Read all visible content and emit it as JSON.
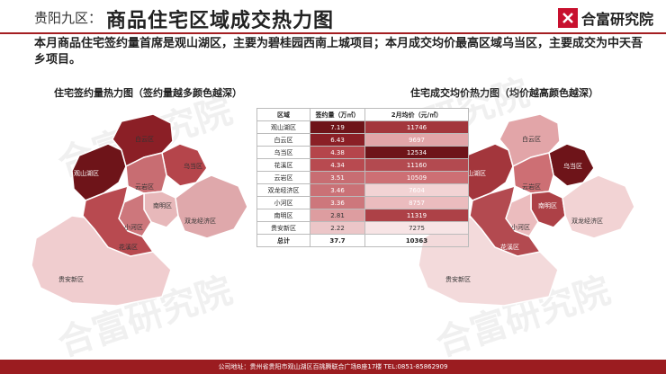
{
  "title_prefix": "贵阳九区：",
  "title_main": "商品住宅区域成交热力图",
  "brand_name": "合富研究院",
  "summary": "本月商品住宅签约量首席是观山湖区，主要为碧桂园西南上城项目；本月成交均价最高区域乌当区，主要成交为中天吾乡项目。",
  "left_subtitle": "住宅签约量热力图（签约量越多颜色越深）",
  "right_subtitle": "住宅成交均价热力图（均价越高颜色越深）",
  "watermark": "合富研究院",
  "table": {
    "headers": [
      "区域",
      "签约量（万㎡）",
      "2月均价（元/㎡）"
    ],
    "rows": [
      {
        "name": "观山湖区",
        "vol": "7.19",
        "price": "11746",
        "vc": "#6e1419",
        "pc": "#a3363c"
      },
      {
        "name": "白云区",
        "vol": "6.43",
        "price": "9697",
        "vc": "#8b1f26",
        "pc": "#e2a5a8"
      },
      {
        "name": "乌当区",
        "vol": "4.38",
        "price": "12534",
        "vc": "#b5454b",
        "pc": "#6e1419"
      },
      {
        "name": "花溪区",
        "vol": "4.34",
        "price": "11160",
        "vc": "#b84a50",
        "pc": "#b34a50"
      },
      {
        "name": "云岩区",
        "vol": "3.51",
        "price": "10509",
        "vc": "#c86d72",
        "pc": "#cd6f74"
      },
      {
        "name": "双龙经济区",
        "vol": "3.46",
        "price": "7604",
        "vc": "#ca7176",
        "pc": "#f2d3d4"
      },
      {
        "name": "小河区",
        "vol": "3.36",
        "price": "8757",
        "vc": "#cd777c",
        "pc": "#ebbcbe"
      },
      {
        "name": "南明区",
        "vol": "2.81",
        "price": "11319",
        "vc": "#dd9da0",
        "pc": "#ad4147"
      },
      {
        "name": "贵安新区",
        "vol": "2.22",
        "price": "7275",
        "vc": "#ecc6c8",
        "pc": "#f7e4e5"
      }
    ],
    "total": {
      "name": "总计",
      "vol": "37.7",
      "price": "10363"
    }
  },
  "map_labels": {
    "guanshanhu": "观山湖区",
    "baiyun": "白云区",
    "wudang": "乌当区",
    "yunyan": "云岩区",
    "nanming": "南明区",
    "xiaohe": "小河区",
    "shuanglong": "双龙经济区",
    "huaxi": "花溪区",
    "guian": "贵安新区"
  },
  "left_colors": {
    "guanshanhu": "#6e1419",
    "baiyun": "#8b1f26",
    "wudang": "#b5454b",
    "huaxi": "#b84a50",
    "yunyan": "#c86d72",
    "shuanglong": "#dfa8ab",
    "xiaohe": "#cd777c",
    "nanming": "#e7b8ba",
    "guian": "#f0cdcf"
  },
  "right_colors": {
    "guanshanhu": "#a3363c",
    "baiyun": "#e2a5a8",
    "wudang": "#6e1419",
    "huaxi": "#b34a50",
    "yunyan": "#cd6f74",
    "shuanglong": "#f2d3d4",
    "xiaohe": "#ebbcbe",
    "nanming": "#ad4147",
    "guian": "#f3dadb"
  },
  "footer": "公司地址：贵州省贵阳市观山湖区百挑腾联合广场B座17楼   TEL:0851-85862909"
}
